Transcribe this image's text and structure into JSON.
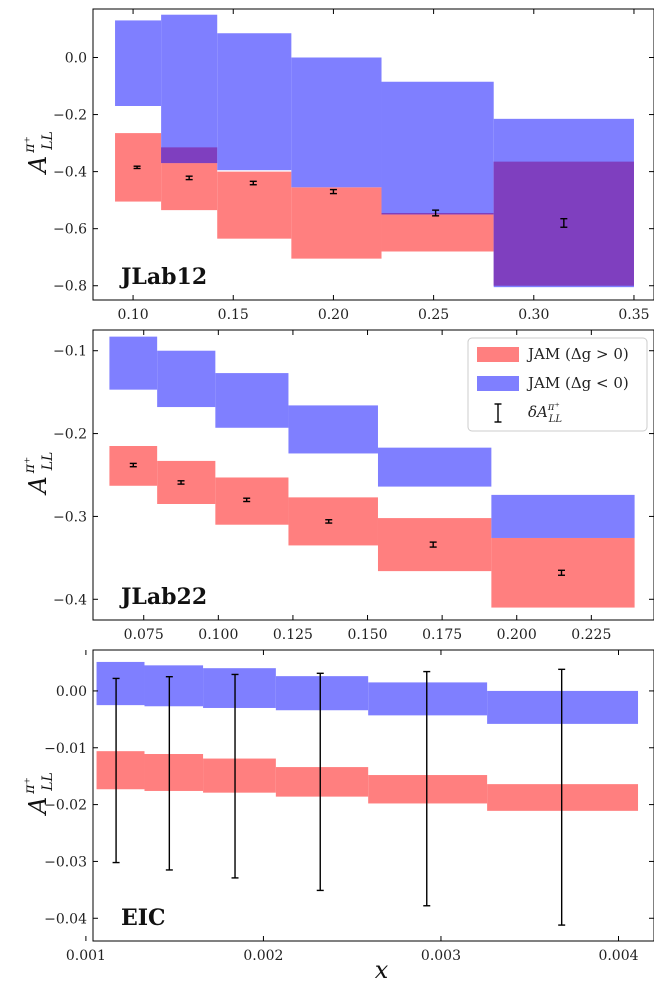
{
  "chart_data": [
    {
      "type": "box",
      "panel_label": "JLab12",
      "ylabel_main": "A",
      "ylabel_sup": "π⁺",
      "ylabel_sub": "LL",
      "xlim": [
        0.08,
        0.36
      ],
      "ylim": [
        -0.85,
        0.17
      ],
      "xticks": [
        0.1,
        0.15,
        0.2,
        0.25,
        0.3,
        0.35
      ],
      "xtick_labels": [
        "0.10",
        "0.15",
        "0.20",
        "0.25",
        "0.30",
        "0.35"
      ],
      "yticks": [
        0.0,
        -0.2,
        -0.4,
        -0.6,
        -0.8
      ],
      "ytick_labels": [
        "0.0",
        "−0.2",
        "−0.4",
        "−0.6",
        "−0.8"
      ],
      "bins": [
        {
          "x_low": 0.091,
          "x_high": 0.114,
          "pos_low": -0.505,
          "pos_high": -0.265,
          "neg_low": -0.17,
          "neg_high": 0.13,
          "x": 0.102,
          "y": -0.385,
          "err": 0.004
        },
        {
          "x_low": 0.114,
          "x_high": 0.142,
          "pos_low": -0.535,
          "pos_high": -0.315,
          "neg_low": -0.37,
          "neg_high": 0.15,
          "x": 0.128,
          "y": -0.422,
          "err": 0.006
        },
        {
          "x_low": 0.142,
          "x_high": 0.179,
          "pos_low": -0.635,
          "pos_high": -0.4,
          "neg_low": -0.395,
          "neg_high": 0.085,
          "x": 0.16,
          "y": -0.44,
          "err": 0.006
        },
        {
          "x_low": 0.179,
          "x_high": 0.224,
          "pos_low": -0.705,
          "pos_high": -0.455,
          "neg_low": -0.455,
          "neg_high": 0.0,
          "x": 0.2,
          "y": -0.47,
          "err": 0.007
        },
        {
          "x_low": 0.224,
          "x_high": 0.28,
          "pos_low": -0.68,
          "pos_high": -0.545,
          "neg_low": -0.55,
          "neg_high": -0.085,
          "x": 0.251,
          "y": -0.545,
          "err": 0.01
        },
        {
          "x_low": 0.28,
          "x_high": 0.35,
          "pos_low": -0.8,
          "pos_high": -0.365,
          "neg_low": -0.805,
          "neg_high": -0.215,
          "x": 0.315,
          "y": -0.58,
          "err": 0.015
        }
      ]
    },
    {
      "type": "box",
      "panel_label": "JLab22",
      "ylabel_main": "A",
      "ylabel_sup": "π⁺",
      "ylabel_sub": "LL",
      "xlim": [
        0.058,
        0.246
      ],
      "ylim": [
        -0.425,
        -0.075
      ],
      "xticks": [
        0.075,
        0.1,
        0.125,
        0.15,
        0.175,
        0.2,
        0.225
      ],
      "xtick_labels": [
        "0.075",
        "0.100",
        "0.125",
        "0.150",
        "0.175",
        "0.200",
        "0.225"
      ],
      "yticks": [
        -0.1,
        -0.2,
        -0.3,
        -0.4
      ],
      "ytick_labels": [
        "−0.1",
        "−0.2",
        "−0.3",
        "−0.4"
      ],
      "legend": [
        {
          "label": "JAM (Δg > 0)",
          "color": "#ff7f7f",
          "kind": "patch"
        },
        {
          "label": "JAM (Δg < 0)",
          "color": "#7f7fff",
          "kind": "patch"
        },
        {
          "label": "δA",
          "label_sup": "π⁺",
          "label_sub": "LL",
          "color": "#000000",
          "kind": "errorbar"
        }
      ],
      "bins": [
        {
          "x_low": 0.0635,
          "x_high": 0.0795,
          "pos_low": -0.263,
          "pos_high": -0.215,
          "neg_low": -0.147,
          "neg_high": -0.083,
          "x": 0.0715,
          "y": -0.238,
          "err": 0.002
        },
        {
          "x_low": 0.0795,
          "x_high": 0.099,
          "pos_low": -0.285,
          "pos_high": -0.233,
          "neg_low": -0.168,
          "neg_high": -0.1,
          "x": 0.0875,
          "y": -0.259,
          "err": 0.002
        },
        {
          "x_low": 0.099,
          "x_high": 0.1235,
          "pos_low": -0.31,
          "pos_high": -0.253,
          "neg_low": -0.193,
          "neg_high": -0.127,
          "x": 0.1095,
          "y": -0.28,
          "err": 0.002
        },
        {
          "x_low": 0.1235,
          "x_high": 0.1535,
          "pos_low": -0.335,
          "pos_high": -0.277,
          "neg_low": -0.224,
          "neg_high": -0.166,
          "x": 0.137,
          "y": -0.306,
          "err": 0.002
        },
        {
          "x_low": 0.1535,
          "x_high": 0.1915,
          "pos_low": -0.366,
          "pos_high": -0.302,
          "neg_low": -0.264,
          "neg_high": -0.217,
          "x": 0.172,
          "y": -0.334,
          "err": 0.003
        },
        {
          "x_low": 0.1915,
          "x_high": 0.2395,
          "pos_low": -0.41,
          "pos_high": -0.326,
          "neg_low": -0.326,
          "neg_high": -0.274,
          "x": 0.215,
          "y": -0.368,
          "err": 0.003
        }
      ]
    },
    {
      "type": "box",
      "panel_label": "EIC",
      "ylabel_main": "A",
      "ylabel_sup": "π⁺",
      "ylabel_sub": "LL",
      "xlim": [
        0.00104,
        0.0042
      ],
      "ylim": [
        -0.044,
        0.0072
      ],
      "xticks": [
        0.001,
        0.002,
        0.003,
        0.004
      ],
      "xtick_labels": [
        "0.001",
        "0.002",
        "0.003",
        "0.004"
      ],
      "yticks": [
        0.0,
        -0.01,
        -0.02,
        -0.03,
        -0.04
      ],
      "ytick_labels": [
        "0.00",
        "−0.01",
        "−0.02",
        "−0.03",
        "−0.04"
      ],
      "xlabel": "x",
      "bins": [
        {
          "x_low": 0.00106,
          "x_high": 0.00133,
          "pos_low": -0.0173,
          "pos_high": -0.0106,
          "neg_low": -0.0025,
          "neg_high": 0.0051,
          "x": 0.00117,
          "y": -0.014,
          "err": 0.0162
        },
        {
          "x_low": 0.00133,
          "x_high": 0.00166,
          "pos_low": -0.0176,
          "pos_high": -0.0111,
          "neg_low": -0.0027,
          "neg_high": 0.0045,
          "x": 0.00147,
          "y": -0.0145,
          "err": 0.017
        },
        {
          "x_low": 0.00166,
          "x_high": 0.00207,
          "pos_low": -0.0179,
          "pos_high": -0.0119,
          "neg_low": -0.003,
          "neg_high": 0.004,
          "x": 0.00184,
          "y": -0.015,
          "err": 0.0179
        },
        {
          "x_low": 0.00207,
          "x_high": 0.00259,
          "pos_low": -0.0186,
          "pos_high": -0.0134,
          "neg_low": -0.0034,
          "neg_high": 0.0026,
          "x": 0.00232,
          "y": -0.016,
          "err": 0.0191
        },
        {
          "x_low": 0.00259,
          "x_high": 0.00326,
          "pos_low": -0.0198,
          "pos_high": -0.0148,
          "neg_low": -0.0043,
          "neg_high": 0.0015,
          "x": 0.00292,
          "y": -0.0172,
          "err": 0.0206
        },
        {
          "x_low": 0.00326,
          "x_high": 0.00411,
          "pos_low": -0.0211,
          "pos_high": -0.0164,
          "neg_low": -0.0058,
          "neg_high": 0.0,
          "x": 0.00368,
          "y": -0.0187,
          "err": 0.0225
        }
      ]
    }
  ],
  "colors": {
    "pos": "#ff7f7f",
    "neg": "#7f7fff",
    "overlap": "#7f3fbf",
    "error": "#000000",
    "axis": "#000000"
  }
}
